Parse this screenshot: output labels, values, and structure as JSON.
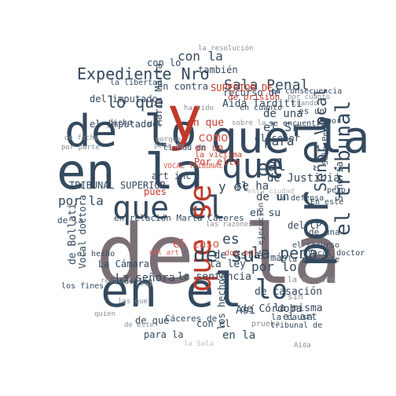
{
  "palette": {
    "slate": "#34495e",
    "slate_dark": "#2c3e50",
    "taupe": "#7b6f76",
    "red": "#c0392b",
    "rose": "#d65a4a",
    "grey": "#8a8f96",
    "light": "#b8bcc2",
    "background": "#ffffff"
  },
  "words": [
    {
      "text": "de la",
      "color": "taupe"
    },
    {
      "text": "en la",
      "color": "slate"
    },
    {
      "text": "de lo",
      "color": "slate"
    },
    {
      "text": "en el",
      "color": "slate"
    },
    {
      "text": "y",
      "color": "red"
    },
    {
      "text": "que la",
      "color": "slate"
    },
    {
      "text": "por el",
      "color": "slate"
    },
    {
      "text": "que el",
      "color": "slate"
    },
    {
      "text": "que se",
      "color": "red"
    },
    {
      "text": "que",
      "color": "slate"
    },
    {
      "text": "Expediente Nro",
      "color": "slate"
    },
    {
      "text": "el tribunal",
      "color": "slate"
    },
    {
      "text": "Señor Vocal",
      "color": "slate"
    },
    {
      "text": "de su",
      "color": "slate"
    },
    {
      "text": "Sala Penal",
      "color": "slate"
    },
    {
      "text": "lo que",
      "color": "slate"
    },
    {
      "text": "la pena",
      "color": "slate"
    },
    {
      "text": "el",
      "color": "slate"
    },
    {
      "text": "lo",
      "color": "slate"
    },
    {
      "text": "con la",
      "color": "slate"
    },
    {
      "text": "por la",
      "color": "slate"
    },
    {
      "text": "como",
      "color": "rose"
    },
    {
      "text": "de Justicia",
      "color": "slate"
    },
    {
      "text": "para",
      "color": "slate"
    },
    {
      "text": "el Sr",
      "color": "slate"
    },
    {
      "text": "al",
      "color": "slate"
    },
    {
      "text": "de una",
      "color": "slate"
    },
    {
      "text": "del imputado",
      "color": "slate"
    },
    {
      "text": "el imputado",
      "color": "slate"
    },
    {
      "text": "Aída Tarditti",
      "color": "slate"
    },
    {
      "text": "en que",
      "color": "red"
    },
    {
      "text": "en contra",
      "color": "slate"
    },
    {
      "text": "en un",
      "color": "red"
    },
    {
      "text": "y el",
      "color": "slate"
    },
    {
      "text": "TRIBUNAL SUPERIOR",
      "color": "slate"
    },
    {
      "text": "Por ello",
      "color": "red"
    },
    {
      "text": "pues",
      "color": "red"
    },
    {
      "text": "art inc",
      "color": "slate"
    },
    {
      "text": "se ha",
      "color": "slate"
    },
    {
      "text": "en su",
      "color": "slate"
    },
    {
      "text": "en relación Marta Cáceres",
      "color": "slate"
    },
    {
      "text": "de un",
      "color": "slate"
    },
    {
      "text": "el caso",
      "color": "rose"
    },
    {
      "text": "de esta",
      "color": "slate"
    },
    {
      "text": "La señora",
      "color": "slate"
    },
    {
      "text": "de Córdoba",
      "color": "slate"
    },
    {
      "text": "la sentencia",
      "color": "slate"
    },
    {
      "text": "la ley",
      "color": "slate"
    },
    {
      "text": "de casación",
      "color": "slate"
    },
    {
      "text": "es",
      "color": "slate"
    },
    {
      "text": "más",
      "color": "slate"
    },
    {
      "text": "La Cámara",
      "color": "slate"
    },
    {
      "text": "de Bollati",
      "color": "slate"
    },
    {
      "text": "Vocal doctora",
      "color": "slate"
    },
    {
      "text": "los hechos",
      "color": "slate"
    },
    {
      "text": "Así",
      "color": "slate"
    },
    {
      "text": "en la",
      "color": "slate"
    },
    {
      "text": "del CP",
      "color": "slate"
    },
    {
      "text": "la misma",
      "color": "slate"
    },
    {
      "text": "el art",
      "color": "slate"
    },
    {
      "text": "de que",
      "color": "slate"
    },
    {
      "text": "con el",
      "color": "slate"
    },
    {
      "text": "para la",
      "color": "slate"
    },
    {
      "text": "Cáceres de",
      "color": "slate"
    },
    {
      "text": "también",
      "color": "slate"
    },
    {
      "text": "con lo",
      "color": "slate"
    },
    {
      "text": "recurso de",
      "color": "slate"
    },
    {
      "text": "SUPERIOR DE",
      "color": "red"
    },
    {
      "text": "María Marta",
      "color": "slate"
    },
    {
      "text": "la libertad",
      "color": "slate"
    },
    {
      "text": "en cuanto",
      "color": "slate"
    },
    {
      "text": "de prisión",
      "color": "red"
    },
    {
      "text": "en consecuencia",
      "color": "slate"
    },
    {
      "text": "se encuentra",
      "color": "slate"
    },
    {
      "text": "el señor",
      "color": "slate"
    },
    {
      "text": "la víctima",
      "color": "red"
    },
    {
      "text": "del",
      "color": "slate"
    },
    {
      "text": "Señoría",
      "color": "slate"
    },
    {
      "text": "es un",
      "color": "slate"
    },
    {
      "text": "por lo",
      "color": "slate"
    },
    {
      "text": "Sala Penal",
      "color": "slate"
    },
    {
      "text": "dicho",
      "color": "slate"
    },
    {
      "text": "ciudad de",
      "color": "slate"
    },
    {
      "text": "Sebastián",
      "color": "slate"
    },
    {
      "text": "de ejecución",
      "color": "slate"
    },
    {
      "text": "la causa",
      "color": "slate"
    },
    {
      "text": "el recurso",
      "color": "slate"
    },
    {
      "text": "la presente",
      "color": "slate"
    },
    {
      "text": "Vocal doctor",
      "color": "slate"
    },
    {
      "text": "la defensa",
      "color": "slate"
    },
    {
      "text": "los fines",
      "color": "slate"
    },
    {
      "text": "tribunal de",
      "color": "slate"
    },
    {
      "text": "de la",
      "color": "slate"
    },
    {
      "text": "En este",
      "color": "slate"
    },
    {
      "text": "el hecho",
      "color": "slate"
    },
    {
      "text": "la resolución",
      "color": "grey"
    },
    {
      "text": "sobre la",
      "color": "grey"
    },
    {
      "text": "por cuanto",
      "color": "grey"
    },
    {
      "text": "cuando",
      "color": "grey"
    },
    {
      "text": "ha sido",
      "color": "grey"
    },
    {
      "text": "pena de",
      "color": "grey"
    },
    {
      "text": "de fecha",
      "color": "grey"
    },
    {
      "text": "por parte",
      "color": "grey"
    },
    {
      "text": "los que",
      "color": "grey"
    },
    {
      "text": "sin",
      "color": "grey"
    },
    {
      "text": "prueba",
      "color": "grey"
    },
    {
      "text": "la doctora",
      "color": "grey"
    },
    {
      "text": "Aída",
      "color": "grey"
    },
    {
      "text": "esta ciudad",
      "color": "light"
    },
    {
      "text": "VOCAL TRIBUNAL",
      "color": "rose"
    },
    {
      "text": "del art",
      "color": "rose"
    },
    {
      "text": "las razones",
      "color": "grey"
    },
    {
      "text": "dos mil",
      "color": "rose"
    },
    {
      "text": "Cruz",
      "color": "grey"
    },
    {
      "text": "resulta",
      "color": "grey"
    },
    {
      "text": "quien",
      "color": "grey"
    },
    {
      "text": "de este",
      "color": "grey"
    },
    {
      "text": "la Sala",
      "color": "light"
    },
    {
      "text": "porque",
      "color": "grey"
    },
    {
      "text": "y por",
      "color": "slate"
    },
    {
      "text": "de una",
      "color": "slate"
    },
    {
      "text": "pero",
      "color": "slate"
    },
    {
      "text": "art",
      "color": "slate"
    },
    {
      "text": "esto",
      "color": "slate"
    }
  ]
}
